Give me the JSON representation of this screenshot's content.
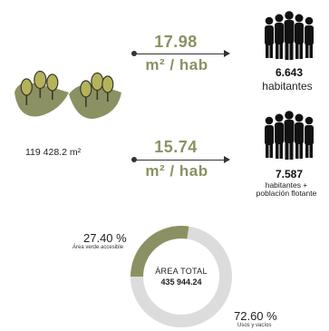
{
  "colors": {
    "accent": "#8c9163",
    "ring_light": "#dcdcdc",
    "dark": "#222222"
  },
  "green_area": {
    "label": "119 428.2 m²",
    "icon": "trees-on-leaf-icon"
  },
  "ratio_top": {
    "value": "17.98",
    "unit": "m² / hab"
  },
  "ratio_bottom": {
    "value": "15.74",
    "unit": "m² / hab"
  },
  "population_top": {
    "icon": "people-group-icon",
    "count": "6.643",
    "label": "habitantes"
  },
  "population_bottom": {
    "icon": "people-group-icon",
    "count": "7.587",
    "label_line1": "habitantes +",
    "label_line2": "población flotante"
  },
  "donut": {
    "accessible_percent": "27.40 %",
    "accessible_label": "Área verde accesible",
    "other_percent": "72.60 %",
    "other_label": "Usos y vacíos",
    "total_title": "ÁREA TOTAL",
    "total_value": "435 944.24",
    "accessible_fraction": 0.274
  }
}
